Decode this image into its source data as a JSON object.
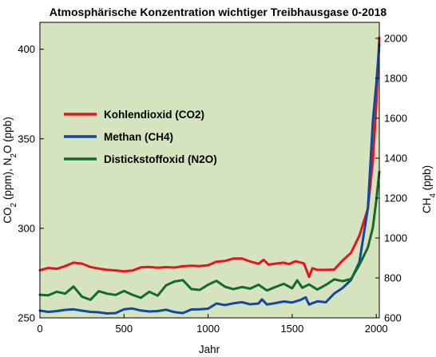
{
  "chart_data": {
    "type": "line",
    "title": "Atmosphärische Konzentration wichtiger Treibhausgase 0-2018",
    "xlabel": "Jahr",
    "ylabel_left": {
      "parts": [
        "CO",
        "2",
        " (ppm), N",
        "2",
        "O (ppb)"
      ]
    },
    "ylabel_right": {
      "parts": [
        "CH",
        "4",
        " (ppb)"
      ]
    },
    "xlim": [
      0,
      2018
    ],
    "ylim_left": [
      250,
      415
    ],
    "ylim_right": [
      600,
      2080
    ],
    "x_ticks": [
      0,
      500,
      1000,
      1500,
      2000
    ],
    "y_ticks_left": [
      250,
      300,
      350,
      400
    ],
    "y_ticks_right": [
      600,
      800,
      1000,
      1200,
      1400,
      1600,
      1800,
      2000
    ],
    "background_color": "#d5e3bf",
    "legend_position": "upper-left inside plot",
    "series": [
      {
        "name": "Kohlendioxid (CO2)",
        "color": "#e8141c",
        "axis": "left",
        "points": [
          [
            0,
            276.6
          ],
          [
            50,
            277.9
          ],
          [
            100,
            277.4
          ],
          [
            150,
            278.9
          ],
          [
            200,
            280.8
          ],
          [
            250,
            280.3
          ],
          [
            300,
            278.4
          ],
          [
            350,
            277.5
          ],
          [
            400,
            276.8
          ],
          [
            450,
            276.5
          ],
          [
            500,
            276.0
          ],
          [
            550,
            276.4
          ],
          [
            600,
            278.2
          ],
          [
            650,
            278.4
          ],
          [
            700,
            278.0
          ],
          [
            750,
            278.3
          ],
          [
            800,
            278.1
          ],
          [
            850,
            278.8
          ],
          [
            900,
            279.1
          ],
          [
            950,
            278.9
          ],
          [
            1000,
            279.4
          ],
          [
            1050,
            281.4
          ],
          [
            1100,
            281.8
          ],
          [
            1150,
            283.1
          ],
          [
            1200,
            283.2
          ],
          [
            1250,
            281.5
          ],
          [
            1300,
            280.2
          ],
          [
            1330,
            282.4
          ],
          [
            1360,
            279.7
          ],
          [
            1400,
            280.3
          ],
          [
            1450,
            280.8
          ],
          [
            1480,
            280.0
          ],
          [
            1520,
            281.6
          ],
          [
            1570,
            280.4
          ],
          [
            1600,
            272.9
          ],
          [
            1620,
            277.7
          ],
          [
            1650,
            276.8
          ],
          [
            1700,
            276.8
          ],
          [
            1750,
            277.0
          ],
          [
            1800,
            282.1
          ],
          [
            1850,
            286.3
          ],
          [
            1900,
            296.0
          ],
          [
            1950,
            311.0
          ],
          [
            1980,
            338.0
          ],
          [
            2000,
            369.0
          ],
          [
            2018,
            406.5
          ]
        ]
      },
      {
        "name": "Methan (CH4)",
        "color": "#1448a0",
        "axis": "right",
        "points": [
          [
            0,
            636
          ],
          [
            50,
            630
          ],
          [
            100,
            634
          ],
          [
            150,
            640
          ],
          [
            200,
            643
          ],
          [
            250,
            636
          ],
          [
            300,
            630
          ],
          [
            350,
            628
          ],
          [
            400,
            622
          ],
          [
            450,
            624
          ],
          [
            500,
            643
          ],
          [
            550,
            647
          ],
          [
            600,
            637
          ],
          [
            650,
            632
          ],
          [
            700,
            634
          ],
          [
            750,
            641
          ],
          [
            800,
            629
          ],
          [
            850,
            624
          ],
          [
            900,
            642
          ],
          [
            950,
            643
          ],
          [
            1000,
            646
          ],
          [
            1050,
            672
          ],
          [
            1100,
            664
          ],
          [
            1150,
            673
          ],
          [
            1200,
            679
          ],
          [
            1250,
            668
          ],
          [
            1300,
            672
          ],
          [
            1320,
            693
          ],
          [
            1350,
            667
          ],
          [
            1400,
            674
          ],
          [
            1450,
            682
          ],
          [
            1500,
            677
          ],
          [
            1550,
            690
          ],
          [
            1580,
            703
          ],
          [
            1600,
            667
          ],
          [
            1650,
            683
          ],
          [
            1700,
            678
          ],
          [
            1750,
            722
          ],
          [
            1800,
            750
          ],
          [
            1850,
            790
          ],
          [
            1900,
            880
          ],
          [
            1950,
            1150
          ],
          [
            1980,
            1590
          ],
          [
            2000,
            1770
          ],
          [
            2018,
            1970
          ]
        ]
      },
      {
        "name": "Distickstoffoxid (N2O)",
        "color": "#136b2a",
        "axis": "left",
        "points": [
          [
            0,
            262.9
          ],
          [
            50,
            262.6
          ],
          [
            100,
            264.6
          ],
          [
            150,
            263.5
          ],
          [
            200,
            267.5
          ],
          [
            250,
            261.8
          ],
          [
            300,
            260.1
          ],
          [
            350,
            264.9
          ],
          [
            400,
            263.5
          ],
          [
            450,
            262.8
          ],
          [
            500,
            265.0
          ],
          [
            550,
            262.9
          ],
          [
            600,
            261.2
          ],
          [
            650,
            264.6
          ],
          [
            700,
            262.4
          ],
          [
            750,
            268.2
          ],
          [
            800,
            270.3
          ],
          [
            850,
            271.1
          ],
          [
            900,
            266.1
          ],
          [
            950,
            265.6
          ],
          [
            1000,
            268.5
          ],
          [
            1050,
            270.7
          ],
          [
            1100,
            267.4
          ],
          [
            1150,
            266.0
          ],
          [
            1200,
            267.2
          ],
          [
            1250,
            266.3
          ],
          [
            1300,
            268.5
          ],
          [
            1350,
            265.3
          ],
          [
            1400,
            267.2
          ],
          [
            1450,
            269.0
          ],
          [
            1500,
            266.5
          ],
          [
            1530,
            271.0
          ],
          [
            1560,
            266.8
          ],
          [
            1600,
            268.7
          ],
          [
            1650,
            265.8
          ],
          [
            1700,
            268.4
          ],
          [
            1750,
            271.5
          ],
          [
            1800,
            270.5
          ],
          [
            1850,
            271.7
          ],
          [
            1900,
            279.6
          ],
          [
            1950,
            289.3
          ],
          [
            1980,
            300.6
          ],
          [
            2000,
            315.6
          ],
          [
            2018,
            331.5
          ]
        ]
      }
    ]
  }
}
